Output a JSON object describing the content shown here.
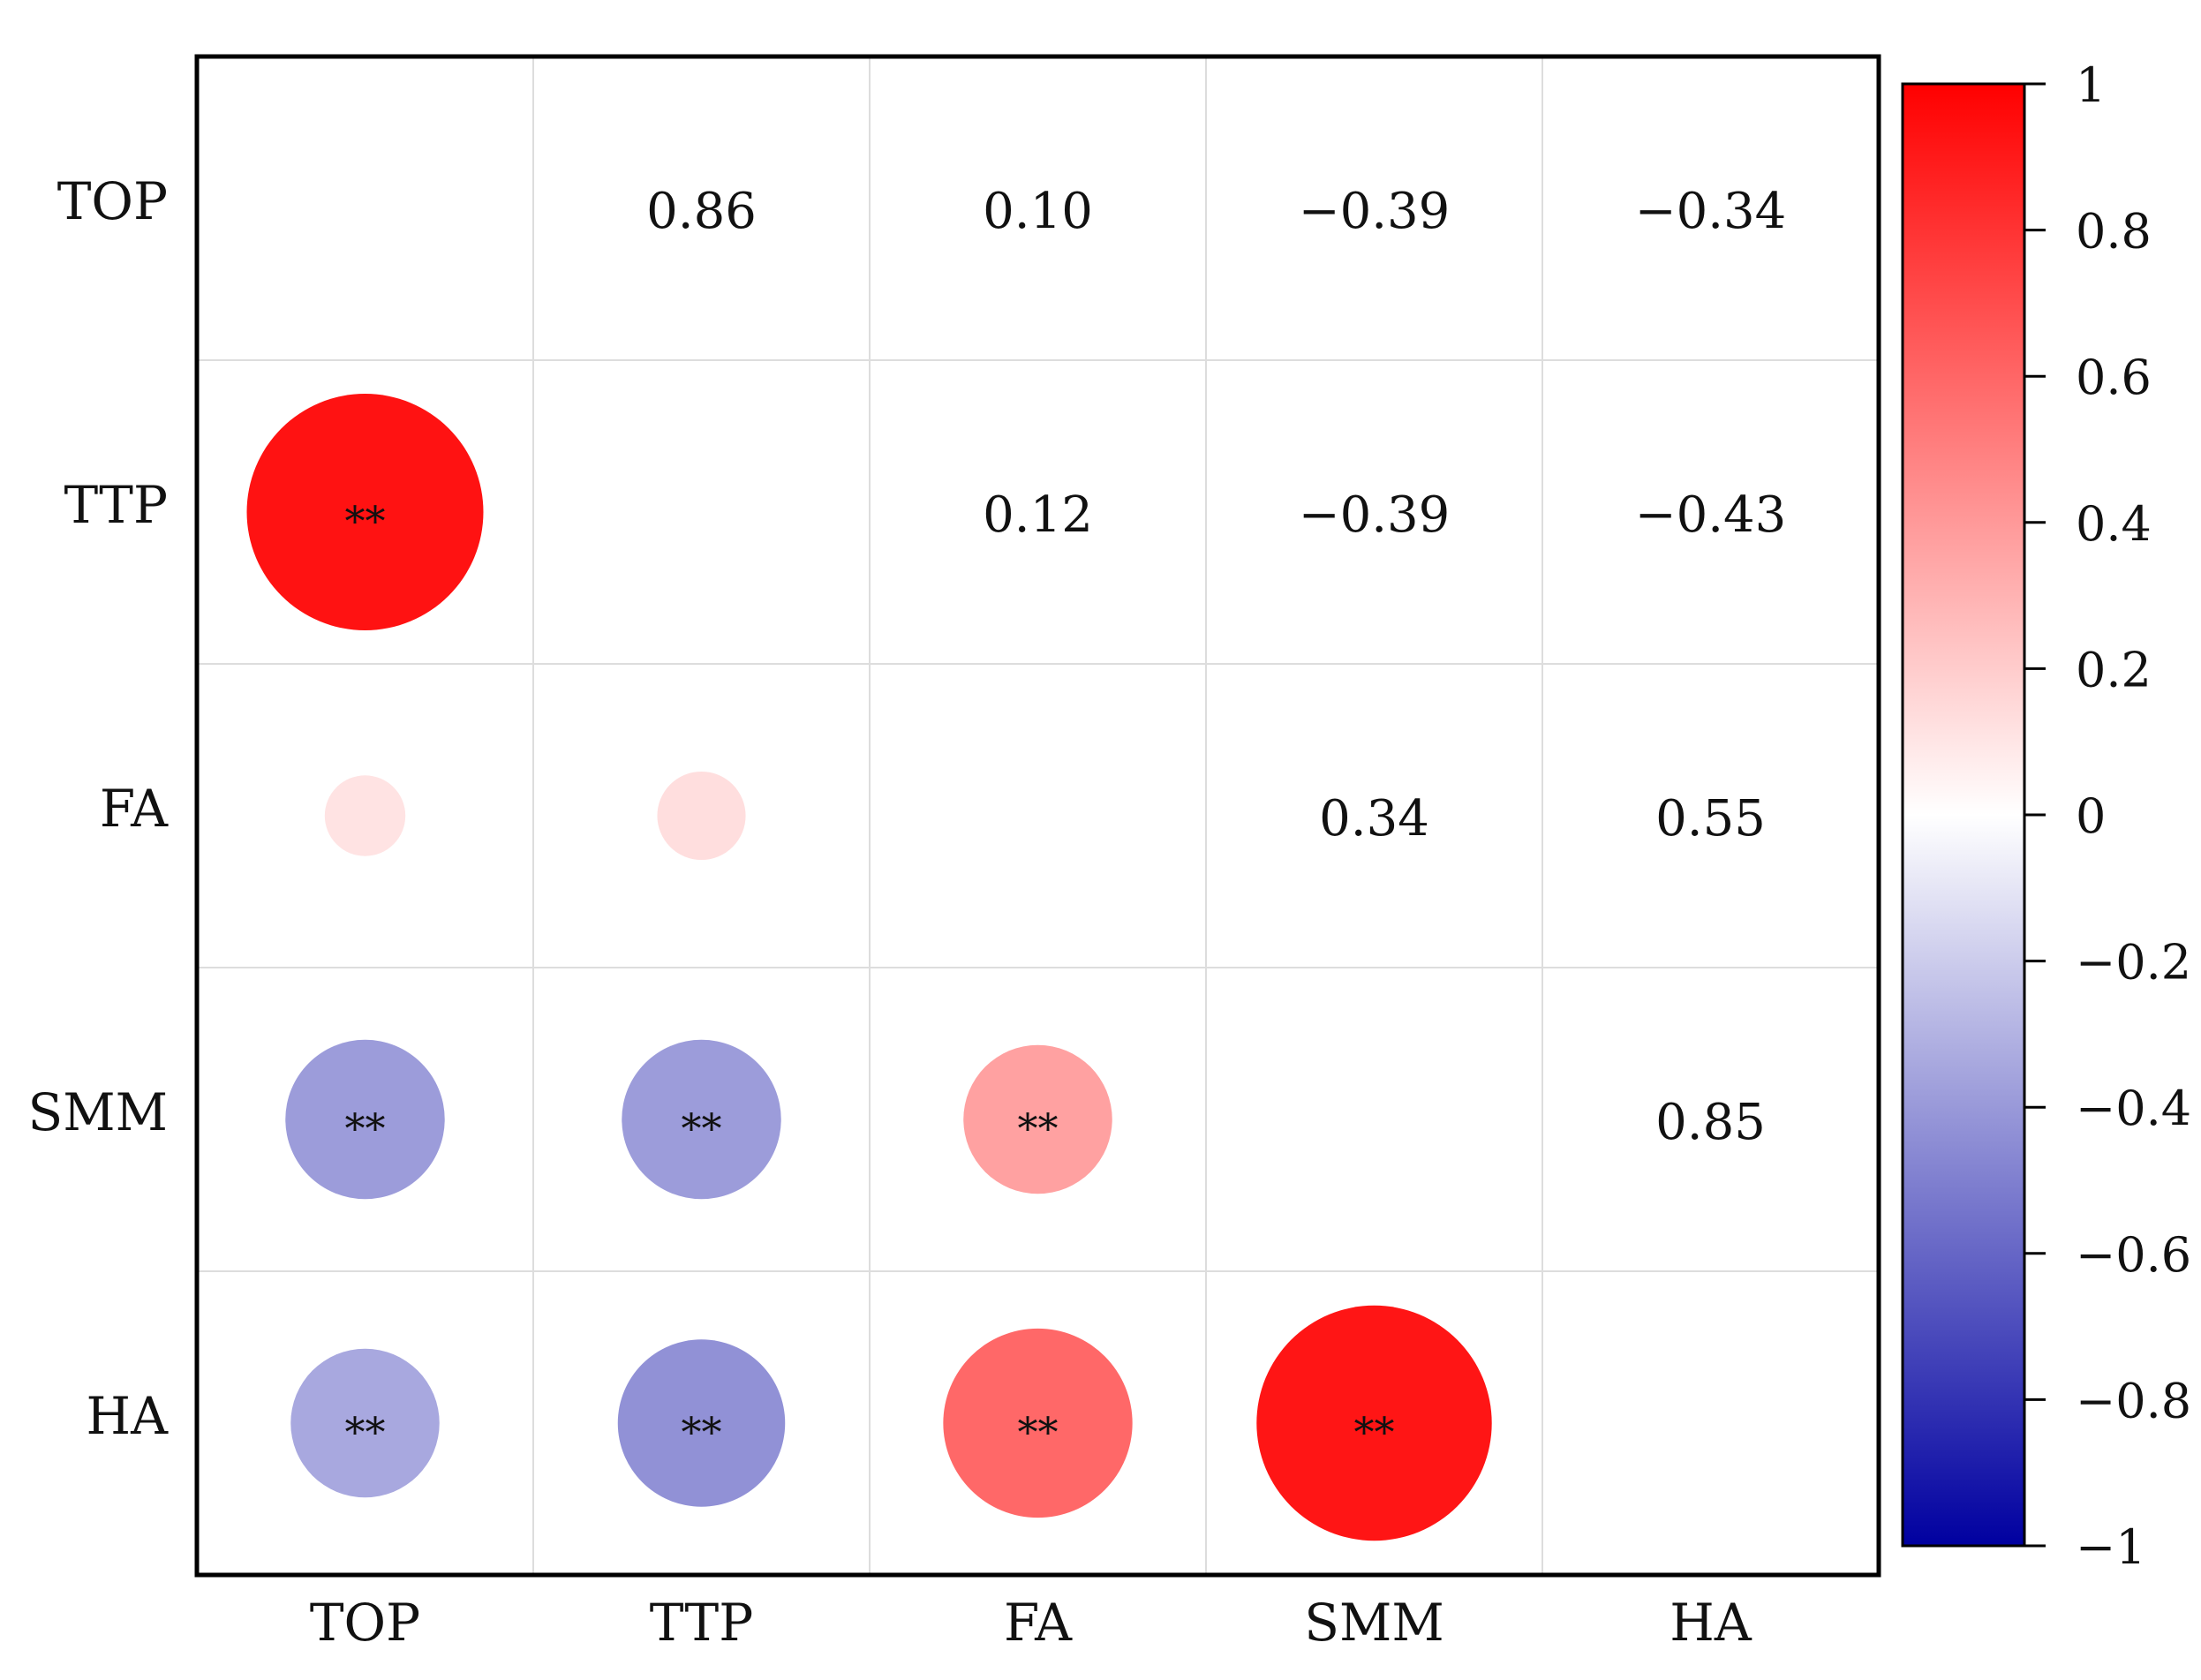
{
  "chart_data": {
    "type": "heatmap",
    "subtype": "correlation-matrix",
    "variables": [
      "TOP",
      "TTP",
      "FA",
      "SMM",
      "HA"
    ],
    "row_labels": [
      "TOP",
      "TTP",
      "FA",
      "SMM",
      "HA"
    ],
    "column_labels": [
      "TOP",
      "TTP",
      "FA",
      "SMM",
      "HA"
    ],
    "upper_triangle_display": "numeric",
    "lower_triangle_display": "circle",
    "correlations": [
      {
        "row": "TTP",
        "col": "TOP",
        "r": 0.86,
        "label": "0.86",
        "sig": "**"
      },
      {
        "row": "FA",
        "col": "TOP",
        "r": 0.1,
        "label": "0.10",
        "sig": ""
      },
      {
        "row": "SMM",
        "col": "TOP",
        "r": -0.39,
        "label": "−0.39",
        "sig": "**"
      },
      {
        "row": "HA",
        "col": "TOP",
        "r": -0.34,
        "label": "−0.34",
        "sig": "**"
      },
      {
        "row": "FA",
        "col": "TTP",
        "r": 0.12,
        "label": "0.12",
        "sig": ""
      },
      {
        "row": "SMM",
        "col": "TTP",
        "r": -0.39,
        "label": "−0.39",
        "sig": "**"
      },
      {
        "row": "HA",
        "col": "TTP",
        "r": -0.43,
        "label": "−0.43",
        "sig": "**"
      },
      {
        "row": "SMM",
        "col": "FA",
        "r": 0.34,
        "label": "0.34",
        "sig": "**"
      },
      {
        "row": "HA",
        "col": "FA",
        "r": 0.55,
        "label": "0.55",
        "sig": "**"
      },
      {
        "row": "HA",
        "col": "SMM",
        "r": 0.85,
        "label": "0.85",
        "sig": "**"
      }
    ],
    "colorbar": {
      "range": [
        -1,
        1
      ],
      "ticks": [
        1,
        0.8,
        0.6,
        0.4,
        0.2,
        0,
        -0.2,
        -0.4,
        -0.6,
        -0.8,
        -1
      ],
      "tick_labels": [
        "1",
        "0.8",
        "0.6",
        "0.4",
        "0.2",
        "0",
        "−0.2",
        "−0.4",
        "−0.6",
        "−0.8",
        "−1"
      ],
      "colors": {
        "positive": "#ff0000",
        "zero": "#ffffff",
        "negative": "#0000a0"
      }
    },
    "grid": true,
    "title": "",
    "xlabel": "",
    "ylabel": ""
  }
}
